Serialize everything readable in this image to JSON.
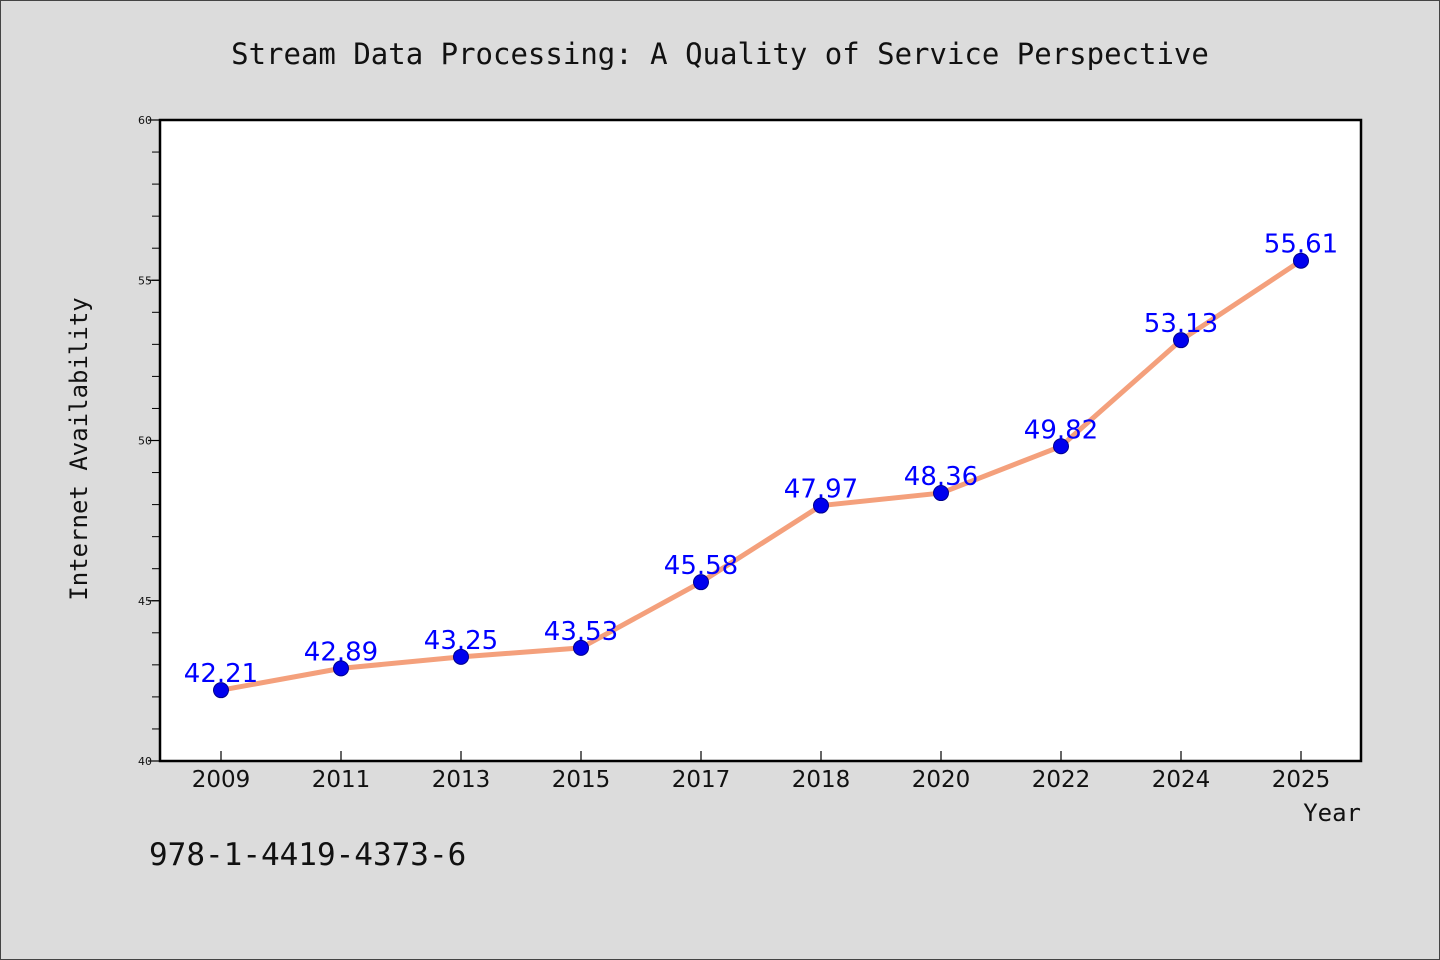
{
  "chart_data": {
    "type": "line",
    "title": "Stream Data Processing: A Quality of Service Perspective",
    "xlabel": "Year",
    "ylabel": "Internet Availability",
    "categories": [
      "2009",
      "2011",
      "2013",
      "2015",
      "2017",
      "2018",
      "2020",
      "2022",
      "2024",
      "2025"
    ],
    "series": [
      {
        "values": [
          42.21,
          42.89,
          43.25,
          43.53,
          45.58,
          47.97,
          48.36,
          49.82,
          53.13,
          55.61
        ],
        "data_labels": [
          "42.21",
          "42.89",
          "43.25",
          "43.53",
          "45.58",
          "47.97",
          "48.36",
          "49.82",
          "53.13",
          "55.61"
        ]
      }
    ],
    "ylim": [
      40,
      60
    ],
    "yticks": [
      "40",
      "45",
      "50",
      "55",
      "60"
    ],
    "grid": false,
    "legend": "none",
    "colors": {
      "line": "#f4a07c",
      "marker": "#0000ee",
      "data_label": "#0000ff",
      "background": "#dcdcdc",
      "plot_background": "#ffffff"
    }
  },
  "footer": {
    "isbn": "978-1-4419-4373-6"
  }
}
